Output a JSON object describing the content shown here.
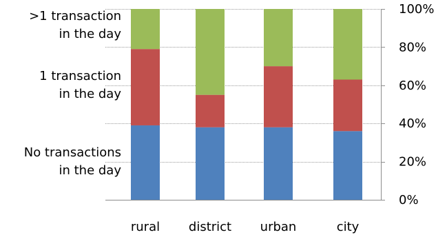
{
  "chart_data": {
    "type": "bar",
    "stacked": true,
    "categories": [
      "rural",
      "district",
      "urban",
      "city"
    ],
    "series": [
      {
        "name": "No transactions in the day",
        "label_lines": [
          "No transactions",
          "in the day"
        ],
        "color": "#4F81BD",
        "values": [
          39,
          38,
          38,
          36
        ]
      },
      {
        "name": "1 transaction in the day",
        "label_lines": [
          "1 transaction",
          "in the day"
        ],
        "color": "#C0504D",
        "values": [
          40,
          17,
          32,
          27
        ]
      },
      {
        "name": ">1 transaction in the day",
        "label_lines": [
          ">1 transaction",
          "in the day"
        ],
        "color": "#9BBB59",
        "values": [
          21,
          45,
          30,
          37
        ]
      }
    ],
    "y_axis": {
      "position": "right",
      "ylim": [
        0,
        100
      ],
      "ticks": [
        0,
        20,
        40,
        60,
        80,
        100
      ],
      "tick_labels": [
        "0%",
        "20%",
        "40%",
        "60%",
        "80%",
        "100%"
      ]
    },
    "grid": true,
    "legend": "left"
  }
}
